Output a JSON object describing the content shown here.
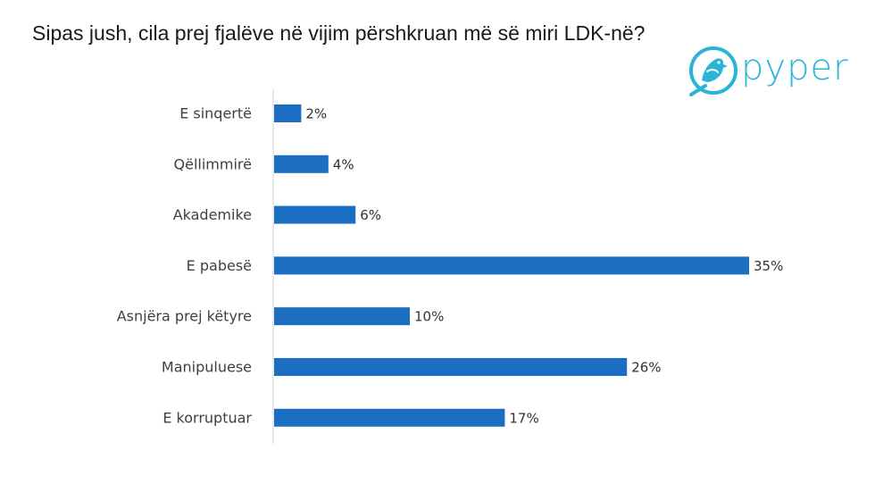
{
  "title": "Sipas jush, cila prej fjalëve në vijim përshkruan më së miri LDK-në?",
  "brand": {
    "name": "pyper",
    "color": "#2ab4d8"
  },
  "chart_data": {
    "type": "bar",
    "orientation": "horizontal",
    "title": "Sipas jush, cila prej fjalëve në vijim përshkruan më së miri LDK-në?",
    "categories": [
      "E sinqertë",
      "Qëllimmirë",
      "Akademike",
      "E pabesë",
      "Asnjëra prej këtyre",
      "Manipuluese",
      "E korruptuar"
    ],
    "values": [
      2,
      4,
      6,
      35,
      10,
      26,
      17
    ],
    "value_labels": [
      "2%",
      "4%",
      "6%",
      "35%",
      "10%",
      "26%",
      "17%"
    ],
    "unit": "%",
    "xlim": [
      0,
      35
    ],
    "bar_color": "#1b6ec2",
    "grid": false,
    "legend": "none"
  }
}
